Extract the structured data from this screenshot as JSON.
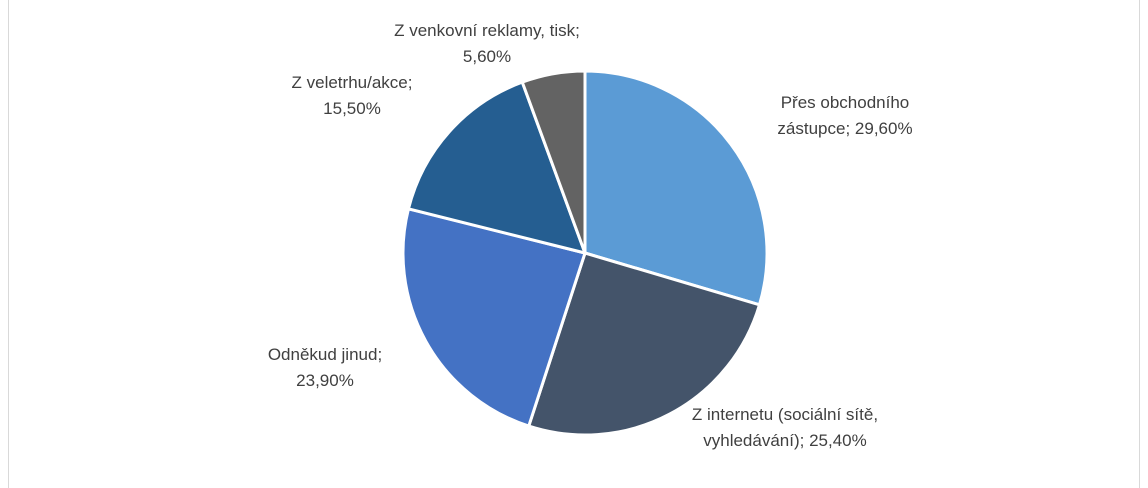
{
  "chart_data": {
    "type": "pie",
    "categories": [
      "Přes obchodního zástupce;",
      "Z internetu (sociální sítě, vyhledávání);",
      "Odněkud jinud;",
      "Z veletrhu/akce;",
      "Z venkovní reklamy, tisk;"
    ],
    "values": [
      29.6,
      25.4,
      23.9,
      15.5,
      5.6
    ],
    "value_labels": [
      "29,60%",
      "25,40%",
      "23,90%",
      "15,50%",
      "5,60%"
    ],
    "colors": [
      "#5b9bd5",
      "#44546a",
      "#4472c4",
      "#255e91",
      "#636363"
    ]
  }
}
